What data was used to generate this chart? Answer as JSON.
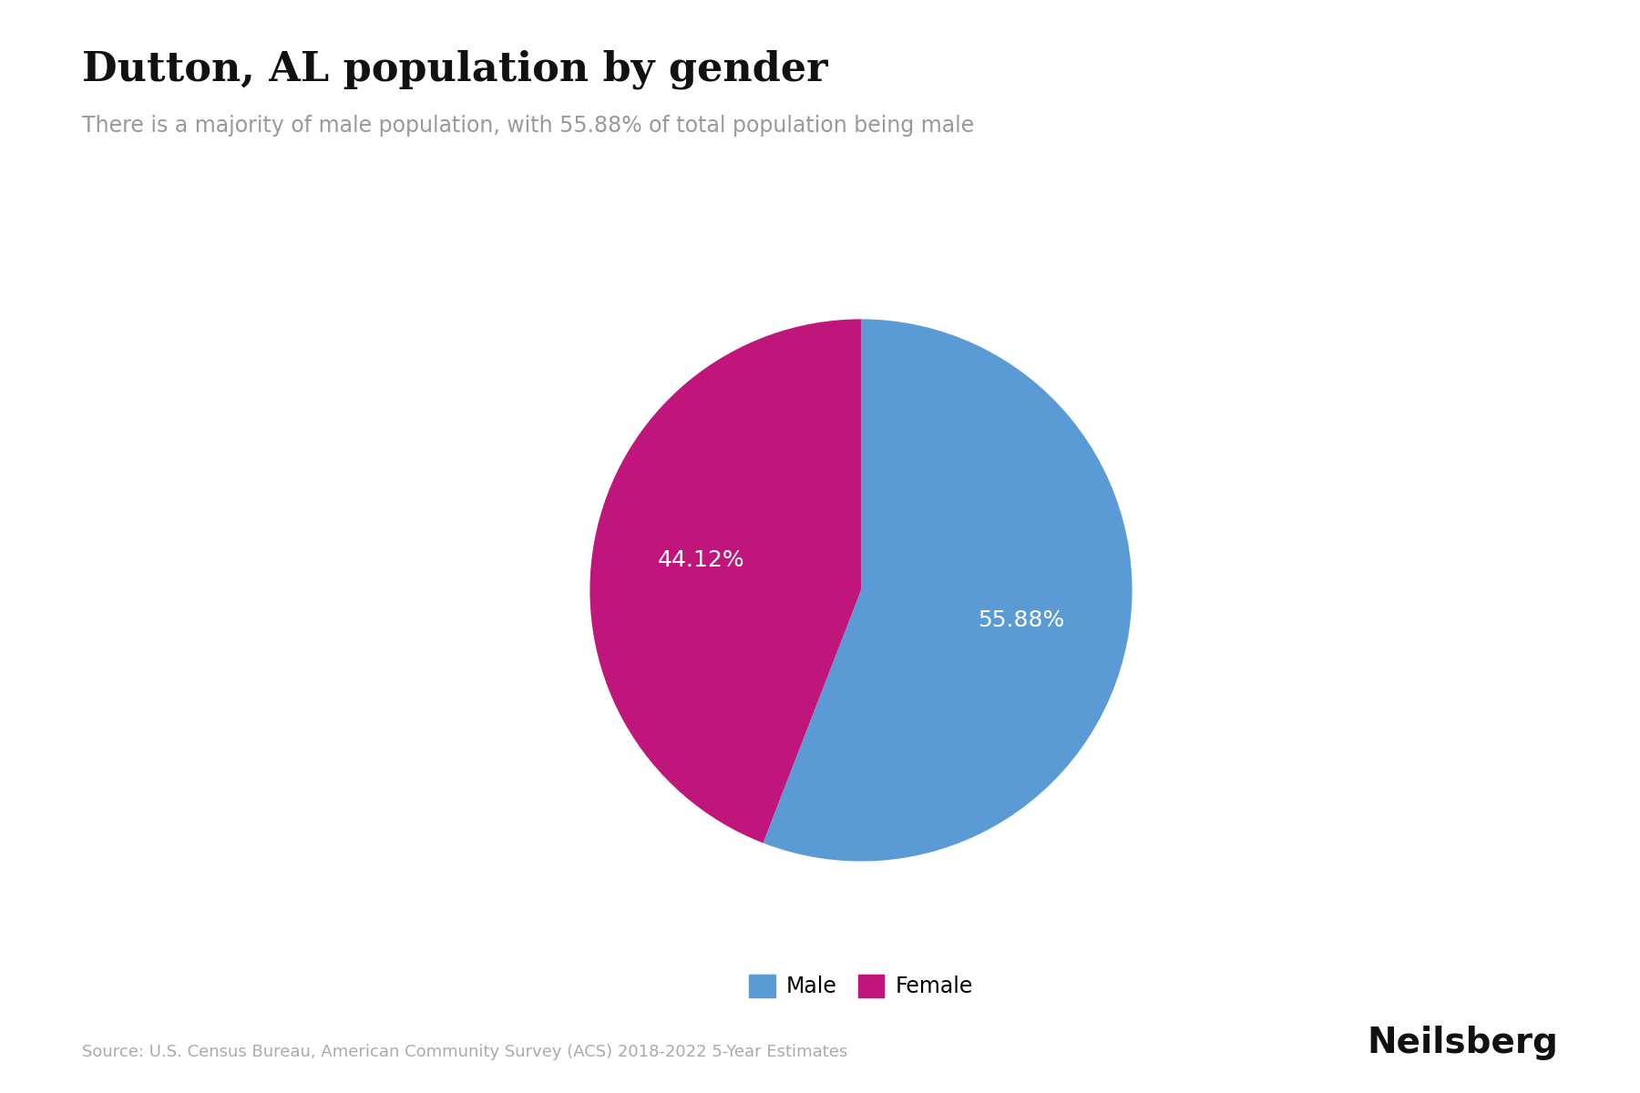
{
  "title": "Dutton, AL population by gender",
  "subtitle": "There is a majority of male population, with 55.88% of total population being male",
  "slices": [
    55.88,
    44.12
  ],
  "labels": [
    "Male",
    "Female"
  ],
  "colors": [
    "#5B9BD5",
    "#C0157A"
  ],
  "text_colors": [
    "white",
    "white"
  ],
  "autopct_labels": [
    "55.88%",
    "44.12%"
  ],
  "source": "Source: U.S. Census Bureau, American Community Survey (ACS) 2018-2022 5-Year Estimates",
  "brand": "Neilsberg",
  "background_color": "#ffffff",
  "title_fontsize": 32,
  "subtitle_fontsize": 17,
  "legend_fontsize": 17,
  "source_fontsize": 13,
  "brand_fontsize": 28,
  "autopct_fontsize": 18
}
